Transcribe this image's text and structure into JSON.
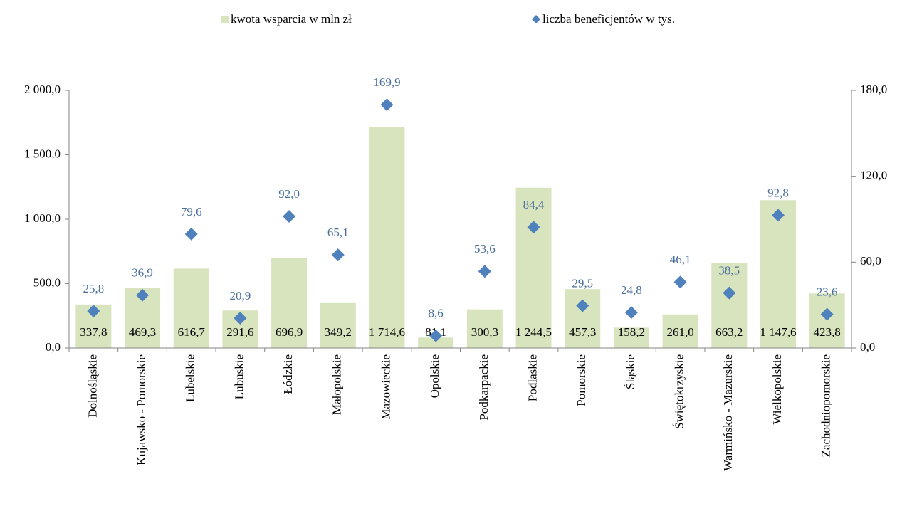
{
  "chart_data": {
    "type": "bar",
    "categories": [
      "Dolnośląskie",
      "Kujawsko - Pomorskie",
      "Lubelskie",
      "Lubuskie",
      "Łódzkie",
      "Małopolskie",
      "Mazowieckie",
      "Opolskie",
      "Podkarpackie",
      "Podlaskie",
      "Pomorskie",
      "Śląskie",
      "Świętokrzyskie",
      "Warmińsko - Mazurskie",
      "Wielkopolskie",
      "Zachodniopomorskie"
    ],
    "series": [
      {
        "name": "kwota wsparcia w mln zł",
        "type": "bar",
        "color": "#d7e4bd",
        "values": [
          337.8,
          469.3,
          616.7,
          291.6,
          696.9,
          349.2,
          1714.6,
          81.1,
          300.3,
          1244.5,
          457.3,
          158.2,
          261.0,
          663.2,
          1147.6,
          423.8
        ],
        "value_labels": [
          "337,8",
          "469,3",
          "616,7",
          "291,6",
          "696,9",
          "349,2",
          "1 714,6",
          "81,1",
          "300,3",
          "1 244,5",
          "457,3",
          "158,2",
          "261,0",
          "663,2",
          "1 147,6",
          "423,8"
        ]
      },
      {
        "name": "liczba beneficjentów w tys.",
        "type": "scatter",
        "axis": "y2",
        "color": "#4f81bd",
        "values": [
          25.8,
          36.9,
          79.6,
          20.9,
          92.0,
          65.1,
          169.9,
          8.6,
          53.6,
          84.4,
          29.5,
          24.8,
          46.1,
          38.5,
          92.8,
          23.6
        ],
        "value_labels": [
          "25,8",
          "36,9",
          "79,6",
          "20,9",
          "92,0",
          "65,1",
          "169,9",
          "8,6",
          "53,6",
          "84,4",
          "29,5",
          "24,8",
          "46,1",
          "38,5",
          "92,8",
          "23,6"
        ]
      }
    ],
    "ylim": [
      0,
      2000
    ],
    "yticks": [
      {
        "value": 0,
        "label": "0,0"
      },
      {
        "value": 500,
        "label": "500,0"
      },
      {
        "value": 1000,
        "label": "1 000,0"
      },
      {
        "value": 1500,
        "label": "1 500,0"
      },
      {
        "value": 2000,
        "label": "2 000,0"
      }
    ],
    "y2lim": [
      0,
      180
    ],
    "y2ticks": [
      {
        "value": 0,
        "label": "0,0"
      },
      {
        "value": 60,
        "label": "60,0"
      },
      {
        "value": 120,
        "label": "120,0"
      },
      {
        "value": 180,
        "label": "180,0"
      }
    ],
    "legend": "top"
  }
}
